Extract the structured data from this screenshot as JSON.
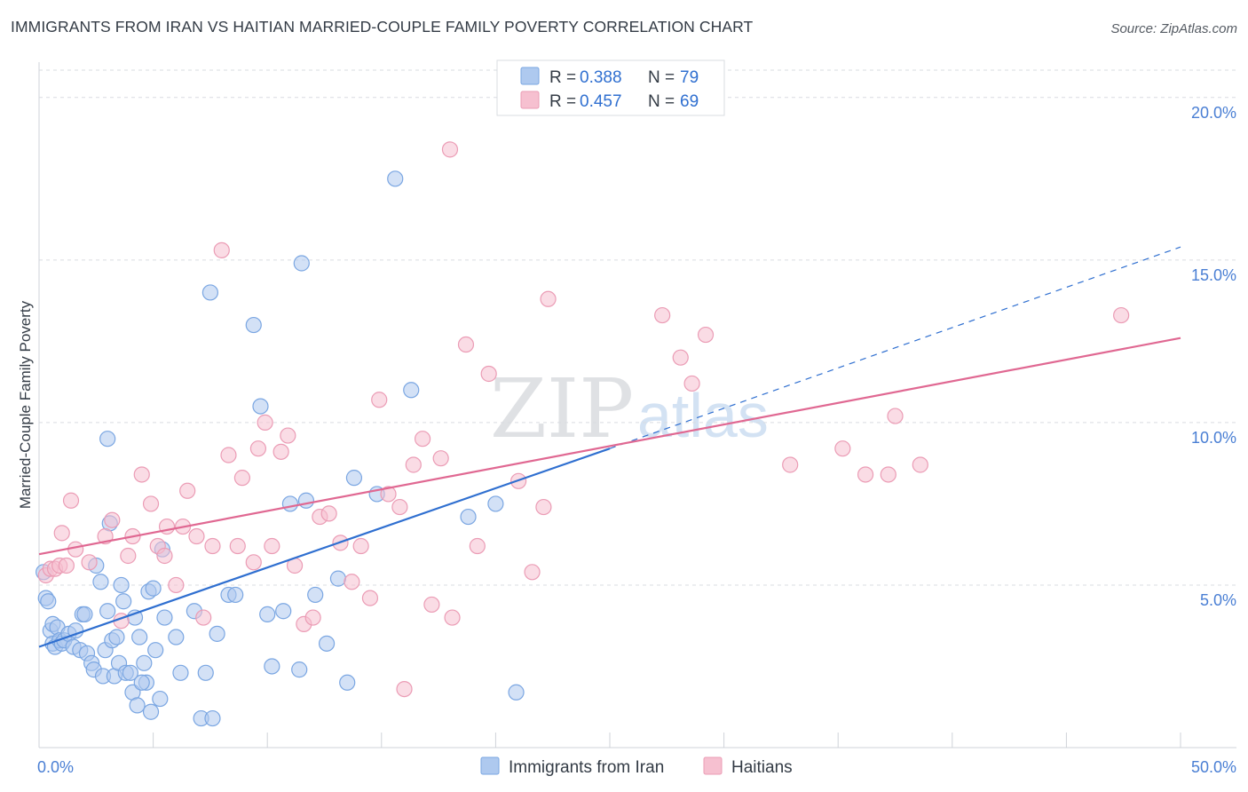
{
  "title": "IMMIGRANTS FROM IRAN VS HAITIAN MARRIED-COUPLE FAMILY POVERTY CORRELATION CHART",
  "source": "Source: ZipAtlas.com",
  "watermark": {
    "zip": "ZIP",
    "atlas": "atlas"
  },
  "colors": {
    "blue_fill": "#aec9ef",
    "blue_stroke": "#7aa6e2",
    "blue_line": "#2f6fd0",
    "pink_fill": "#f6c0d0",
    "pink_stroke": "#eb9cb5",
    "pink_line": "#e06892",
    "grid": "#d9dce1",
    "axis_text": "#4a7fd4"
  },
  "legend": {
    "series1": {
      "r_label": "R =",
      "r_value": "0.388",
      "n_label": "N =",
      "n_value": "79"
    },
    "series2": {
      "r_label": "R =",
      "r_value": "0.457",
      "n_label": "N =",
      "n_value": "69"
    }
  },
  "chart_data": {
    "type": "scatter",
    "title": "IMMIGRANTS FROM IRAN VS HAITIAN MARRIED-COUPLE FAMILY POVERTY CORRELATION CHART",
    "xlabel": "",
    "ylabel": "Married-Couple Family Poverty",
    "xlim": [
      0,
      50
    ],
    "ylim": [
      0,
      20.8
    ],
    "x_tick_labels": [
      "0.0%",
      "50.0%"
    ],
    "y_ticks": [
      5,
      10,
      15,
      20
    ],
    "y_tick_labels": [
      "5.0%",
      "10.0%",
      "15.0%",
      "20.0%"
    ],
    "grid": true,
    "legend_position": "top-center",
    "series": [
      {
        "name": "Immigrants from Iran",
        "color": "blue",
        "r": 0.388,
        "n": 79,
        "trend": {
          "x0": 0,
          "y0": 3.1,
          "x1": 25,
          "y1": 9.2,
          "dashed_to_x": 50,
          "dashed_to_y": 15.4
        },
        "points": [
          [
            0.2,
            5.4
          ],
          [
            0.3,
            4.6
          ],
          [
            0.4,
            4.5
          ],
          [
            0.5,
            3.6
          ],
          [
            0.6,
            3.8
          ],
          [
            0.6,
            3.2
          ],
          [
            0.7,
            3.1
          ],
          [
            0.8,
            3.7
          ],
          [
            0.9,
            3.3
          ],
          [
            1.0,
            3.2
          ],
          [
            1.1,
            3.3
          ],
          [
            1.3,
            3.5
          ],
          [
            1.5,
            3.1
          ],
          [
            1.6,
            3.6
          ],
          [
            1.8,
            3.0
          ],
          [
            1.9,
            4.1
          ],
          [
            2.0,
            4.1
          ],
          [
            2.1,
            2.9
          ],
          [
            2.3,
            2.6
          ],
          [
            2.4,
            2.4
          ],
          [
            2.5,
            5.6
          ],
          [
            2.7,
            5.1
          ],
          [
            2.8,
            2.2
          ],
          [
            2.9,
            3.0
          ],
          [
            3.0,
            4.2
          ],
          [
            3.1,
            6.9
          ],
          [
            3.2,
            3.3
          ],
          [
            3.3,
            2.2
          ],
          [
            3.4,
            3.4
          ],
          [
            3.5,
            2.6
          ],
          [
            3.6,
            5.0
          ],
          [
            3.7,
            4.5
          ],
          [
            3.8,
            2.3
          ],
          [
            4.0,
            2.3
          ],
          [
            4.1,
            1.7
          ],
          [
            4.2,
            4.0
          ],
          [
            4.3,
            1.3
          ],
          [
            4.4,
            3.4
          ],
          [
            4.6,
            2.6
          ],
          [
            4.7,
            2.0
          ],
          [
            4.8,
            4.8
          ],
          [
            4.9,
            1.1
          ],
          [
            5.0,
            4.9
          ],
          [
            5.1,
            3.0
          ],
          [
            5.3,
            1.5
          ],
          [
            5.4,
            6.1
          ],
          [
            5.5,
            4.0
          ],
          [
            6.2,
            2.3
          ],
          [
            6.8,
            4.2
          ],
          [
            7.1,
            0.9
          ],
          [
            7.3,
            2.3
          ],
          [
            7.6,
            0.9
          ],
          [
            7.8,
            3.5
          ],
          [
            8.3,
            4.7
          ],
          [
            8.6,
            4.7
          ],
          [
            3.0,
            9.5
          ],
          [
            7.5,
            14.0
          ],
          [
            9.4,
            13.0
          ],
          [
            9.7,
            10.5
          ],
          [
            10.0,
            4.1
          ],
          [
            10.2,
            2.5
          ],
          [
            10.7,
            4.2
          ],
          [
            11.0,
            7.5
          ],
          [
            11.4,
            2.4
          ],
          [
            11.5,
            14.9
          ],
          [
            12.1,
            4.7
          ],
          [
            12.6,
            3.2
          ],
          [
            13.1,
            5.2
          ],
          [
            13.5,
            2.0
          ],
          [
            13.8,
            8.3
          ],
          [
            14.8,
            7.8
          ],
          [
            15.6,
            17.5
          ],
          [
            16.3,
            11.0
          ],
          [
            18.8,
            7.1
          ],
          [
            20.0,
            7.5
          ],
          [
            20.9,
            1.7
          ],
          [
            11.7,
            7.6
          ],
          [
            6.0,
            3.4
          ],
          [
            4.5,
            2.0
          ]
        ]
      },
      {
        "name": "Haitians",
        "color": "pink",
        "r": 0.457,
        "n": 69,
        "trend": {
          "x0": 0,
          "y0": 5.95,
          "x1": 50,
          "y1": 12.6
        },
        "points": [
          [
            0.3,
            5.3
          ],
          [
            0.5,
            5.5
          ],
          [
            0.7,
            5.5
          ],
          [
            0.9,
            5.6
          ],
          [
            1.0,
            6.6
          ],
          [
            1.2,
            5.6
          ],
          [
            1.4,
            7.6
          ],
          [
            1.6,
            6.1
          ],
          [
            2.2,
            5.7
          ],
          [
            2.9,
            6.5
          ],
          [
            3.2,
            7.0
          ],
          [
            3.6,
            3.9
          ],
          [
            3.9,
            5.9
          ],
          [
            4.1,
            6.5
          ],
          [
            4.5,
            8.4
          ],
          [
            4.9,
            7.5
          ],
          [
            5.2,
            6.2
          ],
          [
            5.5,
            5.9
          ],
          [
            5.6,
            6.8
          ],
          [
            6.0,
            5.0
          ],
          [
            6.3,
            6.8
          ],
          [
            6.5,
            7.9
          ],
          [
            6.9,
            6.5
          ],
          [
            7.2,
            4.0
          ],
          [
            7.6,
            6.2
          ],
          [
            8.0,
            15.3
          ],
          [
            8.3,
            9.0
          ],
          [
            8.7,
            6.2
          ],
          [
            8.9,
            8.3
          ],
          [
            9.4,
            5.7
          ],
          [
            9.6,
            9.2
          ],
          [
            9.9,
            10.0
          ],
          [
            10.2,
            6.2
          ],
          [
            10.6,
            9.1
          ],
          [
            10.9,
            9.6
          ],
          [
            11.2,
            5.6
          ],
          [
            11.6,
            3.8
          ],
          [
            12.0,
            4.0
          ],
          [
            12.3,
            7.1
          ],
          [
            12.7,
            7.2
          ],
          [
            13.2,
            6.3
          ],
          [
            13.7,
            5.1
          ],
          [
            14.1,
            6.2
          ],
          [
            14.5,
            4.6
          ],
          [
            14.9,
            10.7
          ],
          [
            15.3,
            7.8
          ],
          [
            15.8,
            7.4
          ],
          [
            16.0,
            1.8
          ],
          [
            16.4,
            8.7
          ],
          [
            16.8,
            9.5
          ],
          [
            17.2,
            4.4
          ],
          [
            17.6,
            8.9
          ],
          [
            18.1,
            4.0
          ],
          [
            18.0,
            18.4
          ],
          [
            18.7,
            12.4
          ],
          [
            19.2,
            6.2
          ],
          [
            19.7,
            11.5
          ],
          [
            21.0,
            8.2
          ],
          [
            21.6,
            5.4
          ],
          [
            22.1,
            7.4
          ],
          [
            22.3,
            13.8
          ],
          [
            27.3,
            13.3
          ],
          [
            28.1,
            12.0
          ],
          [
            28.6,
            11.2
          ],
          [
            29.2,
            12.7
          ],
          [
            32.9,
            8.7
          ],
          [
            35.2,
            9.2
          ],
          [
            36.2,
            8.4
          ],
          [
            37.5,
            10.2
          ]
        ]
      }
    ],
    "extra_points": {
      "Haitians": [
        [
          37.2,
          8.4
        ],
        [
          38.6,
          8.7
        ],
        [
          47.4,
          13.3
        ]
      ]
    }
  },
  "bottom_legend": {
    "series1": "Immigrants from Iran",
    "series2": "Haitians"
  }
}
